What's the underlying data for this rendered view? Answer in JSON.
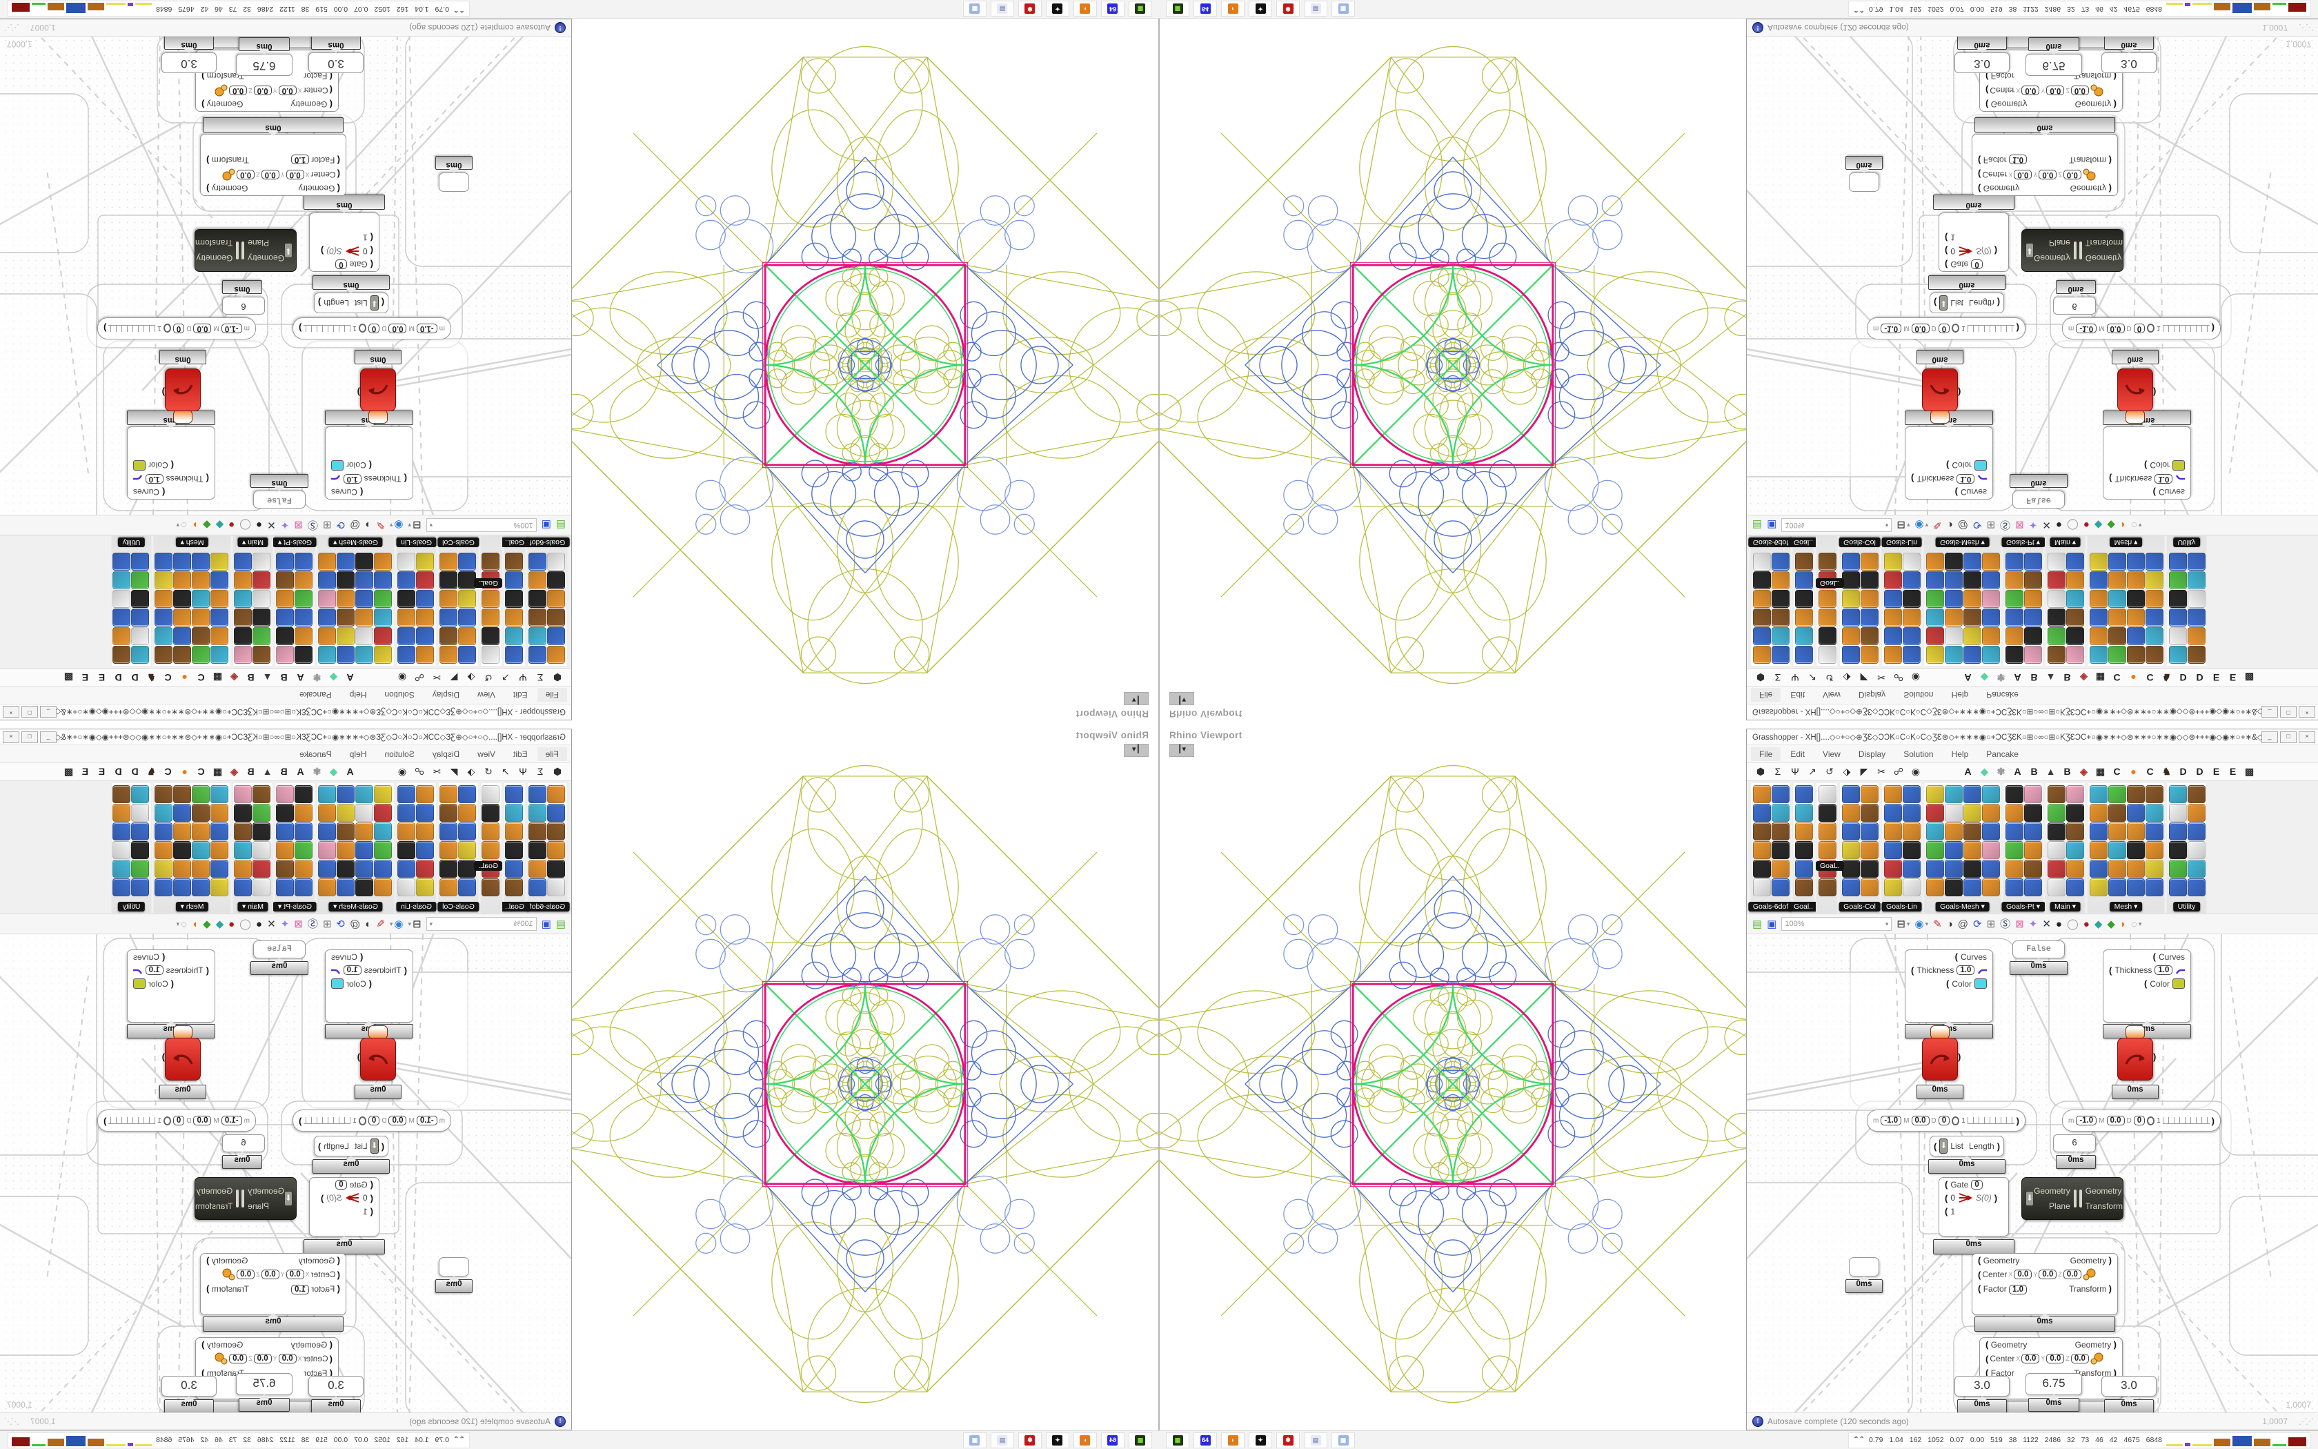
{
  "colors": {
    "pattern_magenta": "#e4127c",
    "pattern_green": "#3cd96a",
    "pattern_olive": "#b4ba2e",
    "pattern_blue": "#4a6fd0",
    "pattern_blue_light": "#7a97e0",
    "chrome_bg": "#f0f0f0",
    "label_chip_bg": "#141414",
    "error_red": "#c01510",
    "selected_dark": "#22231c"
  },
  "viewport": {
    "title": "Rhino Viewport",
    "dropdown_glyph": "┃▾"
  },
  "gh": {
    "window_title": "Grasshopper - XH[]....◇○+○◇⊕ƷƐ◇ƆϽK○Ϲ○K○Ϲ◇ƷƐ⊛◇+∗∗∗◉○+ƆϹƷƐK○⊞○∞○⊞○KƷƐƆϹ+○◉∗∗+◇⊛∗∗+○∗∗◉◇◇⊛+++◉◇◉∗○+∗&◇∗◉○+ƆϹƷƐK○⊞∞○...",
    "window_buttons": [
      "_",
      "□",
      "×"
    ],
    "menu": [
      "File",
      "Edit",
      "View",
      "Display",
      "Solution",
      "Help",
      "Pancake"
    ],
    "tab_glyphs": [
      "⬢",
      "Σ",
      "Ψ",
      "↗",
      "↺",
      "⬗",
      "◤",
      "✂",
      "☍",
      "◉"
    ],
    "tab_letters": [
      {
        "t": "A",
        "c": "#222222"
      },
      {
        "t": "◆",
        "c": "#57d6a0"
      },
      {
        "t": "✾",
        "c": "#9a9a9a"
      },
      {
        "t": "A",
        "c": "#222222"
      },
      {
        "t": "B",
        "c": "#222222"
      },
      {
        "t": "▲",
        "c": "#3a3a3a"
      },
      {
        "t": "B",
        "c": "#222222"
      },
      {
        "t": "◈",
        "c": "#b03434"
      },
      {
        "t": "▦",
        "c": "#333333"
      },
      {
        "t": "C",
        "c": "#222222"
      },
      {
        "t": "●",
        "c": "#f07818"
      },
      {
        "t": "C",
        "c": "#222222"
      },
      {
        "t": "♞",
        "c": "#3a2a1a"
      },
      {
        "t": "D",
        "c": "#222222"
      },
      {
        "t": "D",
        "c": "#222222"
      },
      {
        "t": "E",
        "c": "#222222"
      },
      {
        "t": "E",
        "c": "#222222"
      },
      {
        "t": "▩",
        "c": "#333333"
      }
    ],
    "tooltip": "GoaL.",
    "categories": [
      {
        "label": "Goals-6dof",
        "dd": false,
        "cols": 2,
        "icons": [
          "#e8952f",
          "#3f6fd0",
          "#8a5a2a",
          "#e8952f",
          "#2b2b2b",
          "#f4f4f4",
          "#3f6fd0",
          "#46b8d8",
          "#8a5a2a",
          "#2b2b2b",
          "#e8952f",
          "#3f6fd0"
        ]
      },
      {
        "label": "Goal..",
        "dd": false,
        "cols": 1,
        "icons": [
          "#3f6fd0",
          "#46b8d8",
          "#e8952f",
          "#2b2b2b",
          "#3f6fd0",
          "#8a5a2a"
        ]
      },
      {
        "label": "",
        "dd": false,
        "cols": 1,
        "icons": [
          "#f4f4f4",
          "#2b2b2b",
          "#e8952f",
          "#e8952f",
          "#d04040",
          "#8a5a2a"
        ]
      },
      {
        "label": "Goals-Col",
        "dd": false,
        "cols": 2,
        "icons": [
          "#3f6fd0",
          "#e8952f",
          "#3f6fd0",
          "#e8d23a",
          "#2b2b2b",
          "#3f6fd0",
          "#e8952f",
          "#8a5a2a",
          "#3f6fd0",
          "#e8952f",
          "#2b2b2b",
          "#e8952f"
        ]
      },
      {
        "label": "Goals-Lin",
        "dd": false,
        "cols": 2,
        "icons": [
          "#e8952f",
          "#3f6fd0",
          "#e8952f",
          "#3f6fd0",
          "#d04040",
          "#e8d23a",
          "#3f6fd0",
          "#3f6fd0",
          "#e8952f",
          "#2b2b2b",
          "#3f6fd0",
          "#f4f4f4"
        ]
      },
      {
        "label": "Goals-Mesh",
        "dd": true,
        "cols": 4,
        "icons": [
          "#e8d23a",
          "#d04040",
          "#46b8d8",
          "#57c44a",
          "#3f6fd0",
          "#e8952f",
          "#46b8d8",
          "#f4f4f4",
          "#e8952f",
          "#3f6fd0",
          "#3f6fd0",
          "#2b2b2b",
          "#3f6fd0",
          "#e8d23a",
          "#8a5a2a",
          "#e8952f",
          "#2b2b2b",
          "#3f6fd0",
          "#46b8d8",
          "#e8952f",
          "#3f6fd0",
          "#f0a8c0",
          "#3f6fd0",
          "#e8952f"
        ]
      },
      {
        "label": "Goals-Pt",
        "dd": true,
        "cols": 2,
        "icons": [
          "#2b2b2b",
          "#e8952f",
          "#3f6fd0",
          "#57c44a",
          "#e8952f",
          "#3f6fd0",
          "#f0a8c0",
          "#2b2b2b",
          "#3f6fd0",
          "#e8952f",
          "#8a5a2a",
          "#3f6fd0"
        ]
      },
      {
        "label": "Main",
        "dd": true,
        "cols": 2,
        "icons": [
          "#8a5a2a",
          "#57c44a",
          "#2b2b2b",
          "#f4f4f4",
          "#d04040",
          "#f4f4f4",
          "#f0a8c0",
          "#2b2b2b",
          "#8a5a2a",
          "#46b8d8",
          "#e8952f",
          "#3f6fd0"
        ]
      },
      {
        "label": "Mesh",
        "dd": true,
        "cols": 4,
        "icons": [
          "#46b8d8",
          "#e8952f",
          "#3f6fd0",
          "#e8952f",
          "#3f6fd0",
          "#e8d23a",
          "#57c44a",
          "#8a5a2a",
          "#e8952f",
          "#46b8d8",
          "#e8952f",
          "#3f6fd0",
          "#8a5a2a",
          "#3f6fd0",
          "#e8952f",
          "#2b2b2b",
          "#e8952f",
          "#3f6fd0",
          "#8a5a2a",
          "#46b8d8",
          "#3f6fd0",
          "#e8952f",
          "#e8d23a",
          "#3f6fd0"
        ]
      },
      {
        "label": "Utility",
        "dd": false,
        "cols": 2,
        "icons": [
          "#46b8d8",
          "#f4f4f4",
          "#3f6fd0",
          "#2b2b2b",
          "#57c44a",
          "#3f6fd0",
          "#8a5a2a",
          "#e8952f",
          "#3f6fd0",
          "#f4f4f4",
          "#46b8d8",
          "#3f6fd0"
        ]
      }
    ],
    "canvas_toolbar": {
      "zoom_value": "100%",
      "icons": [
        {
          "name": "open-file-icon",
          "g": "▤",
          "c": "#5bb53a"
        },
        {
          "name": "save-file-icon",
          "g": "▣",
          "c": "#2a52d8"
        },
        {
          "name": "zoom-extents-icon",
          "g": "⊟",
          "c": "#222222"
        },
        {
          "name": "dropdown-icon",
          "g": "▾",
          "c": "#888888"
        },
        {
          "name": "preview-eye-icon",
          "g": "◉",
          "c": "#2a7fd8"
        },
        {
          "name": "dropdown-icon",
          "g": "▾",
          "c": "#888888"
        },
        {
          "name": "sketch-pen-icon",
          "g": "✎",
          "c": "#c03030"
        },
        {
          "name": "display-toggle-icon",
          "g": "◑",
          "c": "#333333"
        },
        {
          "name": "publish-icon",
          "g": "@",
          "c": "#555555"
        },
        {
          "name": "gha-installer-icon",
          "g": "⟳",
          "c": "#2a52d8"
        },
        {
          "name": "find-window-icon",
          "g": "⊞",
          "c": "#777777"
        },
        {
          "name": "search-icon",
          "g": "Ⓢ",
          "c": "#334466"
        },
        {
          "name": "help-box-icon",
          "g": "⊠",
          "c": "#e85aa0"
        },
        {
          "name": "balloon-icon",
          "g": "✦",
          "c": "#9a7ae0"
        },
        {
          "name": "wire-display-icon",
          "g": "✕",
          "c": "#333344"
        },
        {
          "name": "preview-shaded-icon",
          "g": "●",
          "c": "#222222"
        },
        {
          "name": "preview-wireframe-icon",
          "g": "◯",
          "c": "#999999"
        },
        {
          "name": "preview-red-icon",
          "g": "●",
          "c": "#b01818"
        },
        {
          "name": "pin-teal-icon",
          "g": "◆",
          "c": "#2aa89a"
        },
        {
          "name": "pin-green-icon",
          "g": "◆",
          "c": "#3aa12a"
        },
        {
          "name": "pin-orange-icon",
          "g": "◗",
          "c": "#e87818"
        },
        {
          "name": "selection-region-icon",
          "g": "◌",
          "c": "#888888"
        },
        {
          "name": "dropdown-icon",
          "g": "▾",
          "c": "#888888"
        }
      ]
    },
    "nodes": {
      "profiler": "0ms",
      "toggle_value": "False",
      "preview": {
        "in0": "Curves",
        "in1": "Thickness",
        "in2": "Color",
        "thickness": "1.0",
        "swatch1": "#4fd8e8",
        "swatch2": "#c3cc2c"
      },
      "slider_small": {
        "m_label": "m",
        "m": "-1.0",
        "M_label": "M",
        "M": "0.0",
        "D_label": "D",
        "D": "0",
        "tick": "1"
      },
      "red_out": "0",
      "list_length": {
        "in": "List",
        "out": "Length"
      },
      "panel6": "6",
      "filter": {
        "gate": "Gate",
        "gate_v": "0",
        "r0": "0",
        "r1": "1",
        "out": "S(0)"
      },
      "orient": {
        "in0": "Geometry",
        "in1": "Plane",
        "out0": "Geometry",
        "out1": "Transform"
      },
      "scale": {
        "in0": "Geometry",
        "in1": "Center",
        "in2": "Factor",
        "ax": "X",
        "ay": "Y",
        "az": "Z",
        "vx": "0.0",
        "vy": "0.0",
        "vz": "0.0",
        "factor": "1.0",
        "out0": "Geometry",
        "out1": "Transform"
      },
      "panels": [
        "3.0",
        "6.75",
        "3.0"
      ]
    },
    "status": {
      "text": "Autosave complete (120 seconds ago)",
      "zoom": "1,0007",
      "grip": "⋰⋰"
    }
  },
  "taskbar": {
    "buttons": [
      {
        "name": "taskbar-app-green-icon",
        "c": "#223318",
        "g": "▦",
        "gc": "#7be03a"
      },
      {
        "name": "taskbar-app-floppy-icon",
        "c": "#2a2ae0",
        "g": "64",
        "gc": "#ffffff"
      },
      {
        "name": "taskbar-firefox-icon",
        "c": "#e07a1a",
        "g": "◗",
        "gc": "#ffffff"
      },
      {
        "name": "taskbar-rhino-icon",
        "c": "#111111",
        "g": "✦",
        "gc": "#ffffff"
      },
      {
        "name": "taskbar-app-red-icon",
        "c": "#c01818",
        "g": "✾",
        "gc": "#ffffff"
      },
      {
        "name": "taskbar-notepad-icon",
        "c": "#e8e8f8",
        "g": "▤",
        "gc": "#8898b8"
      },
      {
        "name": "taskbar-calculator-icon",
        "c": "#9ab4e8",
        "g": "▦",
        "gc": "#ffffff"
      }
    ],
    "monitor": {
      "arrow": "⌃⌃",
      "numbers": "0.79 1.04 162 1052 0.07 0.00 519 38 1122 2486 32 73 46 42 4675 6848",
      "bars": [
        {
          "c": "#e8e050",
          "w": 24,
          "h": 3
        },
        {
          "c": "#7a3ae0",
          "w": 8,
          "h": 5
        },
        {
          "c": "#e8e050",
          "w": 28,
          "h": 3
        },
        {
          "c": "#b06818",
          "w": 24,
          "h": 11
        },
        {
          "c": "#2a52b0",
          "w": 28,
          "h": 15
        },
        {
          "c": "#b06818",
          "w": 24,
          "h": 11
        },
        {
          "c": "#3ac83a",
          "w": 20,
          "h": 3
        },
        {
          "c": "#8c1212",
          "w": 26,
          "h": 13
        }
      ]
    }
  }
}
